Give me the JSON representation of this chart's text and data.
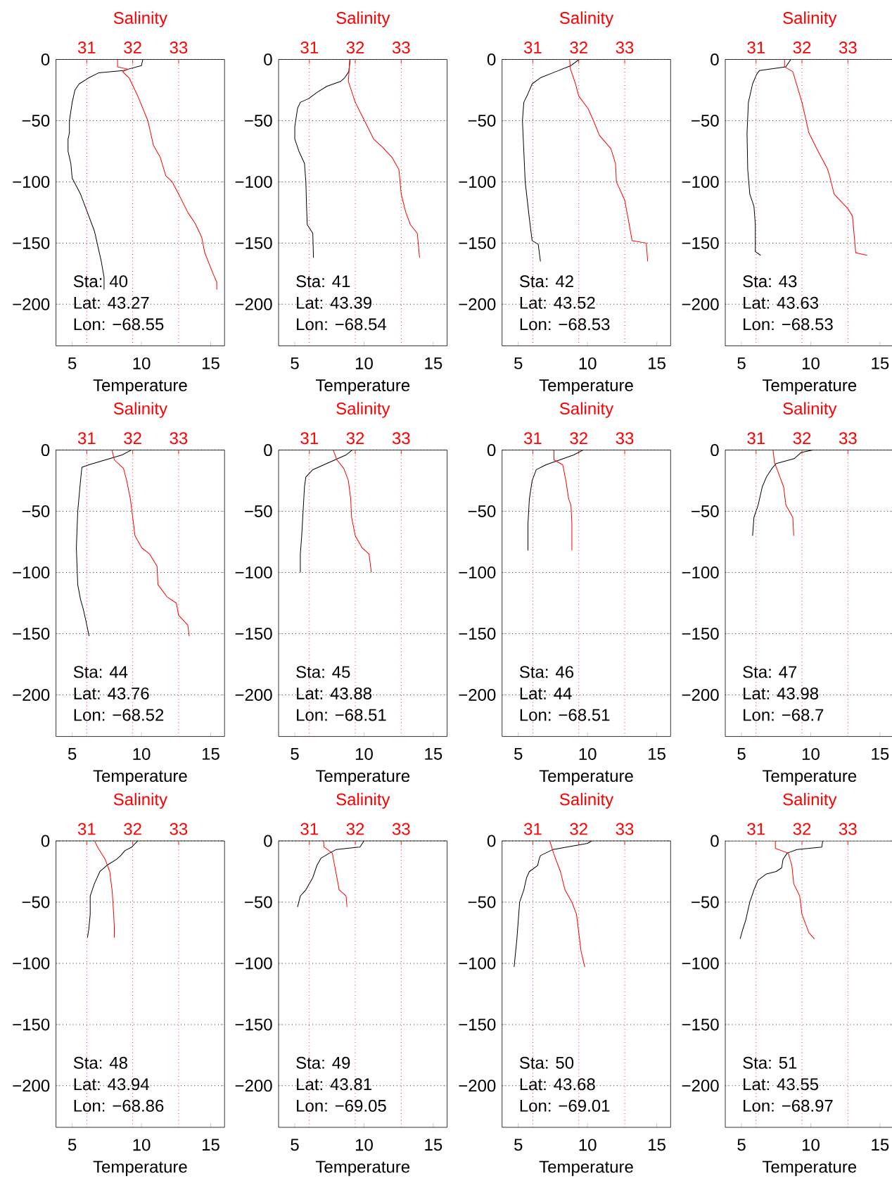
{
  "chart_data": [
    {
      "type": "line",
      "xlabel": "Temperature",
      "x2label": "Salinity",
      "xlim": [
        3.83,
        16
      ],
      "xticks": [
        5,
        10,
        15
      ],
      "x2lim": [
        30.33,
        34
      ],
      "x2ticks": [
        31,
        32,
        33
      ],
      "ylim": [
        -234,
        0
      ],
      "yticks": [
        {
          "value": -200,
          "label": "−200"
        },
        {
          "value": -150,
          "label": "−150"
        },
        {
          "value": -100,
          "label": "−100"
        },
        {
          "value": -50,
          "label": "−50"
        },
        0
      ],
      "grid": true,
      "annotations": [
        "Sta: 40",
        "Lat: 43.27",
        "Lon: −68.55"
      ],
      "series": [
        {
          "color": "#000000",
          "x": [
            10.1,
            10.0,
            8.7,
            6.9,
            6.2,
            5.5,
            5.2,
            5.0,
            4.8,
            4.8,
            4.7,
            4.7,
            4.9,
            5.0,
            5.6,
            6.1,
            6.6,
            6.9,
            7.1,
            7.3,
            7.3
          ],
          "values": [
            0,
            -5,
            -9,
            -11,
            -15,
            -20,
            -25,
            -35,
            -50,
            -60,
            -65,
            -75,
            -85,
            -97,
            -110,
            -125,
            -140,
            -155,
            -165,
            -178,
            -188
          ]
        },
        {
          "color": "#ff0000",
          "axis": "x2",
          "x": [
            31.67,
            31.67,
            31.9,
            31.78,
            31.92,
            32.1,
            32.33,
            32.45,
            32.6,
            32.72,
            32.86,
            33.0,
            33.2,
            33.36,
            33.5,
            33.57,
            33.75,
            33.83,
            33.83
          ],
          "values": [
            0,
            -6,
            -8,
            -10,
            -15,
            -29,
            -50,
            -70,
            -80,
            -95,
            -100,
            -110,
            -125,
            -134,
            -145,
            -158,
            -175,
            -182,
            -188
          ]
        }
      ]
    },
    {
      "type": "line",
      "xlabel": "Temperature",
      "x2label": "Salinity",
      "xlim": [
        3.83,
        16
      ],
      "xticks": [
        5,
        10,
        15
      ],
      "x2lim": [
        30.33,
        34
      ],
      "x2ticks": [
        31,
        32,
        33
      ],
      "ylim": [
        -234,
        0
      ],
      "yticks": [
        {
          "value": -200,
          "label": "−200"
        },
        {
          "value": -150,
          "label": "−150"
        },
        {
          "value": -100,
          "label": "−100"
        },
        {
          "value": -50,
          "label": "−50"
        },
        0
      ],
      "grid": true,
      "annotations": [
        "Sta: 41",
        "Lat: 43.39",
        "Lon: −68.54"
      ],
      "series": [
        {
          "color": "#000000",
          "x": [
            9.0,
            8.9,
            8.6,
            8.3,
            7.3,
            6.6,
            6.0,
            5.4,
            5.2,
            5.0,
            5.0,
            5.3,
            5.7,
            5.8,
            5.85,
            5.9,
            6.3,
            6.35
          ],
          "values": [
            0,
            -10,
            -15,
            -18,
            -22,
            -27,
            -32,
            -35,
            -40,
            -55,
            -65,
            -75,
            -85,
            -100,
            -120,
            -135,
            -142,
            -162
          ]
        },
        {
          "color": "#ff0000",
          "axis": "x2",
          "x": [
            31.88,
            31.85,
            32.0,
            32.2,
            32.4,
            32.6,
            32.8,
            32.95,
            33.0,
            33.1,
            33.2,
            33.35,
            33.4
          ],
          "values": [
            0,
            -18,
            -35,
            -50,
            -65,
            -72,
            -80,
            -90,
            -110,
            -125,
            -135,
            -142,
            -162
          ]
        }
      ]
    },
    {
      "type": "line",
      "xlabel": "Temperature",
      "x2label": "Salinity",
      "xlim": [
        3.83,
        16
      ],
      "xticks": [
        5,
        10,
        15
      ],
      "x2lim": [
        30.33,
        34
      ],
      "x2ticks": [
        31,
        32,
        33
      ],
      "ylim": [
        -234,
        0
      ],
      "yticks": [
        {
          "value": -200,
          "label": "−200"
        },
        {
          "value": -150,
          "label": "−150"
        },
        {
          "value": -100,
          "label": "−100"
        },
        {
          "value": -50,
          "label": "−50"
        },
        0
      ],
      "grid": true,
      "annotations": [
        "Sta: 42",
        "Lat: 43.52",
        "Lon: −68.53"
      ],
      "series": [
        {
          "color": "#000000",
          "x": [
            9.4,
            8.8,
            7.7,
            6.6,
            6.0,
            5.7,
            5.4,
            5.3,
            5.4,
            5.5,
            5.8,
            6.0,
            6.44,
            6.6
          ],
          "values": [
            0,
            -5,
            -10,
            -15,
            -20,
            -28,
            -35,
            -50,
            -75.04,
            -100,
            -130,
            -148,
            -151,
            -165
          ]
        },
        {
          "color": "#ff0000",
          "axis": "x2",
          "x": [
            31.8,
            31.82,
            31.93,
            32.0,
            32.2,
            32.32,
            32.45,
            32.7,
            32.8,
            32.82,
            33.0,
            33.1,
            33.16,
            33.47,
            33.5
          ],
          "values": [
            0,
            -8,
            -20,
            -30,
            -40,
            -50,
            -62,
            -73,
            -85,
            -100,
            -115,
            -135,
            -148,
            -150,
            -165
          ]
        }
      ]
    },
    {
      "type": "line",
      "xlabel": "Temperature",
      "x2label": "Salinity",
      "xlim": [
        3.83,
        16
      ],
      "xticks": [
        5,
        10,
        15
      ],
      "x2lim": [
        30.33,
        34
      ],
      "x2ticks": [
        31,
        32,
        33
      ],
      "ylim": [
        -234,
        0
      ],
      "yticks": [
        {
          "value": -200,
          "label": "−200"
        },
        {
          "value": -150,
          "label": "−150"
        },
        {
          "value": -100,
          "label": "−100"
        },
        {
          "value": -50,
          "label": "−50"
        },
        0
      ],
      "grid": true,
      "annotations": [
        "Sta: 43",
        "Lat: 43.63",
        "Lon: −68.53"
      ],
      "series": [
        {
          "color": "#000000",
          "x": [
            8.56,
            8.2,
            6.3,
            6.1,
            5.8,
            5.5,
            5.4,
            5.45,
            5.6,
            5.9,
            6.0,
            6.0,
            6.38
          ],
          "values": [
            0,
            -6,
            -9,
            -12,
            -20,
            -35,
            -60,
            -90,
            -110,
            -120,
            -135,
            -157,
            -160
          ]
        },
        {
          "color": "#ff0000",
          "axis": "x2",
          "x": [
            31.62,
            31.62,
            31.8,
            32.0,
            32.15,
            32.35,
            32.55,
            32.6,
            32.7,
            33.0,
            33.1,
            33.17,
            33.42
          ],
          "values": [
            0,
            -6,
            -10,
            -35,
            -60,
            -75,
            -89,
            -95,
            -110,
            -122,
            -128,
            -158,
            -160
          ]
        }
      ]
    },
    {
      "type": "line",
      "xlabel": "Temperature",
      "x2label": "Salinity",
      "xlim": [
        3.83,
        16
      ],
      "xticks": [
        5,
        10,
        15
      ],
      "x2lim": [
        30.33,
        34
      ],
      "x2ticks": [
        31,
        32,
        33
      ],
      "ylim": [
        -234,
        0
      ],
      "yticks": [
        {
          "value": -200,
          "label": "−200"
        },
        {
          "value": -150,
          "label": "−150"
        },
        {
          "value": -100,
          "label": "−100"
        },
        {
          "value": -50,
          "label": "−50"
        },
        0
      ],
      "grid": true,
      "annotations": [
        "Sta: 44",
        "Lat: 43.76",
        "Lon: −68.52"
      ],
      "series": [
        {
          "color": "#000000",
          "x": [
            9.26,
            8.6,
            7.4,
            6.2,
            5.7,
            5.6,
            5.4,
            5.3,
            5.4,
            5.6,
            5.8,
            6.0,
            6.22
          ],
          "values": [
            0,
            -4,
            -8,
            -12,
            -14,
            -25,
            -50,
            -80,
            -110,
            -122,
            -130,
            -140,
            -152
          ]
        },
        {
          "color": "#ff0000",
          "axis": "x2",
          "x": [
            31.55,
            31.6,
            31.8,
            31.87,
            31.95,
            32.0,
            32.05,
            32.2,
            32.37,
            32.53,
            32.55,
            32.75,
            32.95,
            33.0,
            33.2,
            33.23
          ],
          "values": [
            0,
            -8,
            -15,
            -25,
            -40,
            -55,
            -70,
            -80,
            -85,
            -95,
            -110,
            -120,
            -125,
            -135,
            -143,
            -152
          ]
        }
      ]
    },
    {
      "type": "line",
      "xlabel": "Temperature",
      "x2label": "Salinity",
      "xlim": [
        3.83,
        16
      ],
      "xticks": [
        5,
        10,
        15
      ],
      "x2lim": [
        30.33,
        34
      ],
      "x2ticks": [
        31,
        32,
        33
      ],
      "ylim": [
        -234,
        0
      ],
      "yticks": [
        {
          "value": -200,
          "label": "−200"
        },
        {
          "value": -150,
          "label": "−150"
        },
        {
          "value": -100,
          "label": "−100"
        },
        {
          "value": -50,
          "label": "−50"
        },
        0
      ],
      "grid": true,
      "annotations": [
        "Sta: 45",
        "Lat: 43.88",
        "Lon: −68.51"
      ],
      "series": [
        {
          "color": "#000000",
          "x": [
            9.14,
            8.7,
            7.5,
            6.3,
            5.8,
            5.7,
            5.6,
            5.5,
            5.4,
            5.4
          ],
          "values": [
            0,
            -4,
            -10,
            -16,
            -22,
            -30,
            -50,
            -70,
            -85,
            -100
          ]
        },
        {
          "color": "#ff0000",
          "axis": "x2",
          "x": [
            31.52,
            31.6,
            31.75,
            31.85,
            31.9,
            31.92,
            32.0,
            32.15,
            32.3,
            32.35
          ],
          "values": [
            0,
            -8,
            -15,
            -25,
            -40,
            -55,
            -70,
            -80,
            -85,
            -100
          ]
        }
      ]
    },
    {
      "type": "line",
      "xlabel": "Temperature",
      "x2label": "Salinity",
      "xlim": [
        3.83,
        16
      ],
      "xticks": [
        5,
        10,
        15
      ],
      "x2lim": [
        30.33,
        34
      ],
      "x2ticks": [
        31,
        32,
        33
      ],
      "ylim": [
        -234,
        0
      ],
      "yticks": [
        {
          "value": -200,
          "label": "−200"
        },
        {
          "value": -150,
          "label": "−150"
        },
        {
          "value": -100,
          "label": "−100"
        },
        {
          "value": -50,
          "label": "−50"
        },
        0
      ],
      "grid": true,
      "annotations": [
        "Sta: 46",
        "Lat: 44",
        "Lon: −68.51"
      ],
      "series": [
        {
          "color": "#000000",
          "x": [
            9.67,
            9.0,
            8.0,
            7.0,
            6.3,
            6.0,
            5.8,
            5.7,
            5.7
          ],
          "values": [
            0,
            -4,
            -8,
            -12,
            -16,
            -25,
            -40,
            -60,
            -82
          ]
        },
        {
          "color": "#ff0000",
          "axis": "x2",
          "x": [
            31.46,
            31.46,
            31.65,
            31.72,
            31.78,
            31.83,
            31.85,
            31.85
          ],
          "values": [
            0,
            -8,
            -12,
            -25,
            -40,
            -45,
            -60,
            -82
          ]
        }
      ]
    },
    {
      "type": "line",
      "xlabel": "Temperature",
      "x2label": "Salinity",
      "xlim": [
        3.83,
        16
      ],
      "xticks": [
        5,
        10,
        15
      ],
      "x2lim": [
        30.33,
        34
      ],
      "x2ticks": [
        31,
        32,
        33
      ],
      "ylim": [
        -234,
        0
      ],
      "yticks": [
        {
          "value": -200,
          "label": "−200"
        },
        {
          "value": -150,
          "label": "−150"
        },
        {
          "value": -100,
          "label": "−100"
        },
        {
          "value": -50,
          "label": "−50"
        },
        0
      ],
      "grid": true,
      "annotations": [
        "Sta: 47",
        "Lat: 43.98",
        "Lon: −68.7"
      ],
      "series": [
        {
          "color": "#000000",
          "x": [
            10.14,
            9.3,
            8.8,
            7.5,
            7.2,
            6.8,
            6.5,
            6.2,
            5.9,
            5.8
          ],
          "values": [
            0,
            -2,
            -7,
            -11,
            -15,
            -22,
            -30,
            -45,
            -55,
            -70
          ]
        },
        {
          "color": "#ff0000",
          "axis": "x2",
          "x": [
            31.37,
            31.4,
            31.5,
            31.6,
            31.65,
            31.8,
            31.82
          ],
          "values": [
            0,
            -10,
            -20,
            -30,
            -45,
            -55,
            -70
          ]
        }
      ]
    },
    {
      "type": "line",
      "xlabel": "Temperature",
      "x2label": "Salinity",
      "xlim": [
        3.83,
        16
      ],
      "xticks": [
        5,
        10,
        15
      ],
      "x2lim": [
        30.33,
        34
      ],
      "x2ticks": [
        31,
        32,
        33
      ],
      "ylim": [
        -234,
        0
      ],
      "yticks": [
        {
          "value": -200,
          "label": "−200"
        },
        {
          "value": -150,
          "label": "−150"
        },
        {
          "value": -100,
          "label": "−100"
        },
        {
          "value": -50,
          "label": "−50"
        },
        0
      ],
      "grid": true,
      "annotations": [
        "Sta: 48",
        "Lat: 43.94",
        "Lon: −68.86"
      ],
      "series": [
        {
          "color": "#000000",
          "x": [
            9.73,
            9.3,
            8.8,
            8.5,
            8.2,
            7.5,
            7.0,
            6.6,
            6.3,
            6.3,
            6.2,
            6.1
          ],
          "values": [
            0,
            -5,
            -8,
            -12,
            -15,
            -20,
            -25,
            -35,
            -45,
            -60,
            -72,
            -79
          ]
        },
        {
          "color": "#ff0000",
          "axis": "x2",
          "x": [
            31.17,
            31.25,
            31.4,
            31.5,
            31.55,
            31.57,
            31.6,
            31.6
          ],
          "values": [
            0,
            -6,
            -15,
            -25,
            -40,
            -50,
            -70,
            -79
          ]
        }
      ]
    },
    {
      "type": "line",
      "xlabel": "Temperature",
      "x2label": "Salinity",
      "xlim": [
        3.83,
        16
      ],
      "xticks": [
        5,
        10,
        15
      ],
      "x2lim": [
        30.33,
        34
      ],
      "x2ticks": [
        31,
        32,
        33
      ],
      "ylim": [
        -234,
        0
      ],
      "yticks": [
        {
          "value": -200,
          "label": "−200"
        },
        {
          "value": -150,
          "label": "−150"
        },
        {
          "value": -100,
          "label": "−100"
        },
        {
          "value": -50,
          "label": "−50"
        },
        0
      ],
      "grid": true,
      "annotations": [
        "Sta: 49",
        "Lat: 43.81",
        "Lon: −69.05"
      ],
      "series": [
        {
          "color": "#000000",
          "x": [
            10.0,
            9.7,
            8.0,
            7.5,
            6.9,
            6.6,
            6.3,
            5.8,
            5.4,
            5.2
          ],
          "values": [
            0,
            -5,
            -7,
            -10,
            -14,
            -20,
            -30,
            -40,
            -45,
            -54
          ]
        },
        {
          "color": "#ff0000",
          "axis": "x2",
          "x": [
            31.31,
            31.32,
            31.5,
            31.55,
            31.6,
            31.65,
            31.8,
            31.82
          ],
          "values": [
            0,
            -5,
            -10,
            -20,
            -30,
            -40,
            -45,
            -54
          ]
        }
      ]
    },
    {
      "type": "line",
      "xlabel": "Temperature",
      "x2label": "Salinity",
      "xlim": [
        3.83,
        16
      ],
      "xticks": [
        5,
        10,
        15
      ],
      "x2lim": [
        30.33,
        34
      ],
      "x2ticks": [
        31,
        32,
        33
      ],
      "ylim": [
        -234,
        0
      ],
      "yticks": [
        {
          "value": -200,
          "label": "−200"
        },
        {
          "value": -150,
          "label": "−150"
        },
        {
          "value": -100,
          "label": "−100"
        },
        {
          "value": -50,
          "label": "−50"
        },
        0
      ],
      "grid": true,
      "annotations": [
        "Sta: 50",
        "Lat: 43.68",
        "Lon: −69.01"
      ],
      "series": [
        {
          "color": "#000000",
          "x": [
            10.3,
            10.0,
            9.0,
            7.5,
            6.6,
            6.5,
            6.4,
            5.8,
            5.6,
            5.4,
            5.1,
            5.0,
            4.9,
            4.7
          ],
          "values": [
            0,
            -2,
            -4,
            -7,
            -12,
            -15,
            -20,
            -25,
            -30,
            -40,
            -50,
            -65,
            -80,
            -103
          ]
        },
        {
          "color": "#ff0000",
          "axis": "x2",
          "x": [
            31.37,
            31.45,
            31.6,
            31.7,
            31.85,
            31.95,
            32.0,
            32.05,
            32.13
          ],
          "values": [
            0,
            -10,
            -25,
            -40,
            -50,
            -60,
            -75,
            -90,
            -103
          ]
        }
      ]
    },
    {
      "type": "line",
      "xlabel": "Temperature",
      "x2label": "Salinity",
      "xlim": [
        3.83,
        16
      ],
      "xticks": [
        5,
        10,
        15
      ],
      "x2lim": [
        30.33,
        34
      ],
      "x2ticks": [
        31,
        32,
        33
      ],
      "ylim": [
        -234,
        0
      ],
      "yticks": [
        {
          "value": -200,
          "label": "−200"
        },
        {
          "value": -150,
          "label": "−150"
        },
        {
          "value": -100,
          "label": "−100"
        },
        {
          "value": -50,
          "label": "−50"
        },
        0
      ],
      "grid": true,
      "annotations": [
        "Sta: 51",
        "Lat: 43.55",
        "Lon: −68.97"
      ],
      "series": [
        {
          "color": "#000000",
          "x": [
            10.86,
            10.8,
            9.0,
            8.3,
            8.0,
            7.9,
            7.5,
            6.8,
            6.2,
            5.9,
            5.6,
            5.3,
            5.1,
            4.9
          ],
          "values": [
            0,
            -5,
            -7,
            -10,
            -15,
            -22,
            -25,
            -27,
            -32,
            -40,
            -50,
            -65,
            -72,
            -80
          ]
        },
        {
          "color": "#ff0000",
          "axis": "x2",
          "x": [
            31.42,
            31.42,
            31.7,
            31.78,
            31.82,
            31.95,
            32.0,
            32.15,
            32.27
          ],
          "values": [
            0,
            -6,
            -10,
            -20,
            -35,
            -45,
            -60,
            -75,
            -80
          ]
        }
      ]
    }
  ]
}
